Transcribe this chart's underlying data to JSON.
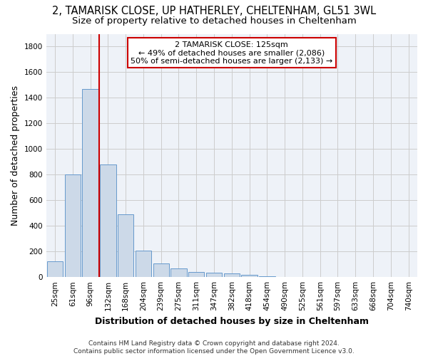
{
  "title_line1": "2, TAMARISK CLOSE, UP HATHERLEY, CHELTENHAM, GL51 3WL",
  "title_line2": "Size of property relative to detached houses in Cheltenham",
  "xlabel": "Distribution of detached houses by size in Cheltenham",
  "ylabel": "Number of detached properties",
  "footer_line1": "Contains HM Land Registry data © Crown copyright and database right 2024.",
  "footer_line2": "Contains public sector information licensed under the Open Government Licence v3.0.",
  "categories": [
    "25sqm",
    "61sqm",
    "96sqm",
    "132sqm",
    "168sqm",
    "204sqm",
    "239sqm",
    "275sqm",
    "311sqm",
    "347sqm",
    "382sqm",
    "418sqm",
    "454sqm",
    "490sqm",
    "525sqm",
    "561sqm",
    "597sqm",
    "633sqm",
    "668sqm",
    "704sqm",
    "740sqm"
  ],
  "values": [
    125,
    800,
    1470,
    880,
    490,
    205,
    105,
    65,
    42,
    35,
    30,
    18,
    8,
    0,
    0,
    0,
    0,
    0,
    0,
    0,
    0
  ],
  "bar_color": "#ccd9e8",
  "bar_edgecolor": "#6699cc",
  "annotation_line1": "2 TAMARISK CLOSE: 125sqm",
  "annotation_line2": "← 49% of detached houses are smaller (2,086)",
  "annotation_line3": "50% of semi-detached houses are larger (2,133) →",
  "vline_color": "#cc0000",
  "annotation_box_color": "#cc0000",
  "ylim": [
    0,
    1900
  ],
  "yticks": [
    0,
    200,
    400,
    600,
    800,
    1000,
    1200,
    1400,
    1600,
    1800
  ],
  "grid_color": "#cccccc",
  "bg_color": "#eef2f8",
  "title_fontsize": 10.5,
  "subtitle_fontsize": 9.5,
  "axis_label_fontsize": 9,
  "tick_fontsize": 7.5,
  "annotation_fontsize": 8,
  "footer_fontsize": 6.5
}
